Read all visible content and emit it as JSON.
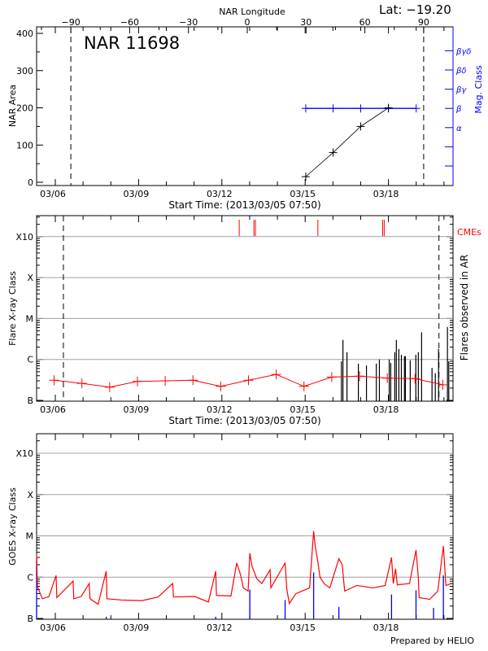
{
  "header": {
    "title": "NAR 11698",
    "lat": "Lat: −19.20"
  },
  "footer": "Prepared by HELIO",
  "colors": {
    "axis": "#000000",
    "grid": "#a0a0a0",
    "mag_class": "#0000ff",
    "flare_red": "#ff0000",
    "goes_long": "#ff0000",
    "goes_short": "#0000ff",
    "cme": "#ff0000"
  },
  "chart_data": [
    {
      "type": "line",
      "title": "NAR 11698",
      "xlabel": "Start Time: (2013/03/05 07:50)",
      "xlim": [
        "2013-03-05 07:50",
        "2013-03-20 07:50"
      ],
      "x_tick_labels": [
        "03/06",
        "03/09",
        "03/12",
        "03/15",
        "03/18"
      ],
      "x_tick_dates": [
        "2013-03-06 00:00",
        "2013-03-09 00:00",
        "2013-03-12 00:00",
        "2013-03-15 00:00",
        "2013-03-18 00:00"
      ],
      "top_axis": {
        "label": "NAR Longitude",
        "ticks": [
          -90,
          -60,
          -30,
          0,
          30,
          60,
          90
        ]
      },
      "limb_longitudes": [
        -90,
        90
      ],
      "ylabel": "NAR Area",
      "ylim": [
        0,
        400
      ],
      "yticks": [
        0,
        100,
        200,
        300,
        400
      ],
      "right_axis": {
        "label": "Mag. Class",
        "ticks": [
          "",
          "",
          "α",
          "β",
          "βγ",
          "βδ",
          "βγδ"
        ]
      },
      "series": [
        {
          "kind": "area",
          "points": [
            [
              "2013-03-15 00:30",
              15
            ],
            [
              "2013-03-16 00:10",
              80
            ],
            [
              "2013-03-17 00:00",
              150
            ],
            [
              "2013-03-18 00:00",
              200
            ]
          ]
        },
        {
          "kind": "mag_class",
          "points": [
            [
              "2013-03-15 00:30",
              "β"
            ],
            [
              "2013-03-16 00:10",
              "β"
            ],
            [
              "2013-03-17 00:00",
              "β"
            ],
            [
              "2013-03-18 00:00",
              "β"
            ],
            [
              "2013-03-19 00:00",
              "β"
            ]
          ]
        }
      ]
    },
    {
      "type": "line",
      "xlabel": "Start Time: (2013/03/05 07:50)",
      "xlim": [
        "2013-03-05 07:50",
        "2013-03-20 07:50"
      ],
      "x_tick_labels": [
        "03/06",
        "03/09",
        "03/12",
        "03/15",
        "03/18"
      ],
      "ylabel": "Flare X-ray Class",
      "y_scale": "log",
      "ylim": [
        1e-07,
        0.0003
      ],
      "y_tick_labels": [
        "B",
        "C",
        "M",
        "X",
        "X10"
      ],
      "y_tick_values": [
        1e-07,
        1e-06,
        1e-05,
        0.0001,
        0.001
      ],
      "grid": true,
      "right_label": "Flares observed in AR",
      "cme_label": "CMEs",
      "limb_crossings": [
        "2013-03-06 07:00",
        "2013-03-19 19:40"
      ],
      "red_series": [
        [
          "2013-03-05 23:00",
          3.1e-07
        ],
        [
          "2013-03-06 23:00",
          2.6e-07
        ],
        [
          "2013-03-07 23:00",
          2.1e-07
        ],
        [
          "2013-03-08 23:00",
          2.9e-07
        ],
        [
          "2013-03-09 23:00",
          3e-07
        ],
        [
          "2013-03-10 23:00",
          3.1e-07
        ],
        [
          "2013-03-11 23:00",
          2.2e-07
        ],
        [
          "2013-03-12 23:00",
          3.1e-07
        ],
        [
          "2013-03-13 23:00",
          4.3e-07
        ],
        [
          "2013-03-14 23:00",
          2.2e-07
        ],
        [
          "2013-03-15 23:00",
          3.7e-07
        ],
        [
          "2013-03-16 23:00",
          3.9e-07
        ],
        [
          "2013-03-17 23:00",
          3.5e-07
        ],
        [
          "2013-03-18 23:00",
          3.4e-07
        ],
        [
          "2013-03-19 23:00",
          2.4e-07
        ]
      ],
      "flares": [
        [
          "2013-03-16 07:20",
          "B9.0"
        ],
        [
          "2013-03-16 08:40",
          "C3.0"
        ],
        [
          "2013-03-16 12:10",
          "C1.5"
        ],
        [
          "2013-03-16 22:00",
          "B7.9"
        ],
        [
          "2013-03-17 05:00",
          "B7.1"
        ],
        [
          "2013-03-17 13:30",
          "B7.9"
        ],
        [
          "2013-03-17 16:10",
          "C1.0"
        ],
        [
          "2013-03-18 00:40",
          "C1.0"
        ],
        [
          "2013-03-18 02:00",
          "B8.2"
        ],
        [
          "2013-03-18 05:30",
          "C1.5"
        ],
        [
          "2013-03-18 06:50",
          "C3.0"
        ],
        [
          "2013-03-18 09:00",
          "C1.8"
        ],
        [
          "2013-03-18 11:10",
          "C1.3"
        ],
        [
          "2013-03-18 13:50",
          "C1.2"
        ],
        [
          "2013-03-18 14:40",
          "C1.2"
        ],
        [
          "2013-03-18 18:50",
          "B9.5"
        ],
        [
          "2013-03-18 23:40",
          "C1.3"
        ],
        [
          "2013-03-19 01:50",
          "C1.5"
        ],
        [
          "2013-03-19 04:40",
          "C4.6"
        ],
        [
          "2013-03-19 13:40",
          "B6.2"
        ],
        [
          "2013-03-19 16:30",
          "B4.6"
        ],
        [
          "2013-03-19 19:20",
          "C1.8"
        ],
        [
          "2013-03-20 03:00",
          "C6.2"
        ],
        [
          "2013-03-20 04:10",
          "B9.0"
        ]
      ],
      "cmes": [
        "2013-03-12 15:00",
        "2013-03-13 03:40",
        "2013-03-13 05:00",
        "2013-03-15 11:00",
        "2013-03-17 19:00",
        "2013-03-17 20:20"
      ]
    },
    {
      "type": "line",
      "xlim": [
        "2013-03-05 07:50",
        "2013-03-20 07:50"
      ],
      "x_tick_labels": [
        "03/06",
        "03/09",
        "03/12",
        "03/15",
        "03/18"
      ],
      "ylabel": "GOES X-ray Class",
      "y_scale": "log",
      "ylim": [
        1e-07,
        0.0003
      ],
      "y_tick_labels": [
        "B",
        "C",
        "M",
        "X",
        "X10"
      ],
      "y_tick_values": [
        1e-07,
        1e-06,
        1e-05,
        0.0001,
        0.001
      ],
      "grid": true,
      "long_channel": [
        [
          "2013-03-05 07:50",
          3.5e-06
        ],
        [
          "2013-03-05 08:30",
          6e-07
        ],
        [
          "2013-03-05 12:50",
          3e-07
        ],
        [
          "2013-03-05 18:30",
          3.4e-07
        ],
        [
          "2013-03-06 00:40",
          1.1e-06
        ],
        [
          "2013-03-06 01:20",
          3.2e-07
        ],
        [
          "2013-03-06 15:20",
          8e-07
        ],
        [
          "2013-03-06 16:00",
          3e-07
        ],
        [
          "2013-03-06 22:20",
          3.4e-07
        ],
        [
          "2013-03-07 05:20",
          7e-07
        ],
        [
          "2013-03-07 06:00",
          3e-07
        ],
        [
          "2013-03-07 13:00",
          2.2e-07
        ],
        [
          "2013-03-07 20:00",
          1.4e-06
        ],
        [
          "2013-03-07 20:40",
          3e-07
        ],
        [
          "2013-03-08 09:20",
          2.8e-07
        ],
        [
          "2013-03-09 02:50",
          2.7e-07
        ],
        [
          "2013-03-09 16:50",
          3.3e-07
        ],
        [
          "2013-03-10 05:30",
          7e-07
        ],
        [
          "2013-03-10 06:10",
          3.3e-07
        ],
        [
          "2013-03-11 00:30",
          3.4e-07
        ],
        [
          "2013-03-11 12:20",
          2.5e-07
        ],
        [
          "2013-03-11 18:40",
          1.4e-06
        ],
        [
          "2013-03-11 19:20",
          3.6e-07
        ],
        [
          "2013-03-12 07:50",
          3.5e-07
        ],
        [
          "2013-03-12 12:50",
          2.2e-06
        ],
        [
          "2013-03-12 16:20",
          1.1e-06
        ],
        [
          "2013-03-12 18:30",
          5.5e-07
        ],
        [
          "2013-03-12 22:40",
          4.6e-07
        ],
        [
          "2013-03-13 00:10",
          3.8e-06
        ],
        [
          "2013-03-13 02:10",
          1.8e-06
        ],
        [
          "2013-03-13 06:20",
          9e-07
        ],
        [
          "2013-03-13 10:30",
          7e-07
        ],
        [
          "2013-03-13 17:40",
          1.5e-06
        ],
        [
          "2013-03-13 18:20",
          5.5e-07
        ],
        [
          "2013-03-14 06:40",
          2.2e-06
        ],
        [
          "2013-03-14 08:10",
          5e-07
        ],
        [
          "2013-03-14 10:20",
          2.3e-07
        ],
        [
          "2013-03-14 16:00",
          4e-07
        ],
        [
          "2013-03-15 03:50",
          5.5e-07
        ],
        [
          "2013-03-15 07:20",
          1.3e-05
        ],
        [
          "2013-03-15 08:40",
          5.7e-06
        ],
        [
          "2013-03-15 10:50",
          2.5e-06
        ],
        [
          "2013-03-15 12:50",
          1e-06
        ],
        [
          "2013-03-15 16:20",
          7e-07
        ],
        [
          "2013-03-15 21:20",
          5.5e-07
        ],
        [
          "2013-03-16 05:10",
          2.8e-06
        ],
        [
          "2013-03-16 08:00",
          2e-06
        ],
        [
          "2013-03-16 10:10",
          4.6e-07
        ],
        [
          "2013-03-16 20:40",
          6.3e-07
        ],
        [
          "2013-03-17 10:40",
          5.5e-07
        ],
        [
          "2013-03-17 21:10",
          6.3e-07
        ],
        [
          "2013-03-18 02:40",
          3e-06
        ],
        [
          "2013-03-18 04:10",
          7e-07
        ],
        [
          "2013-03-18 06:10",
          1.6e-06
        ],
        [
          "2013-03-18 07:40",
          6.5e-07
        ],
        [
          "2013-03-18 18:10",
          7e-07
        ],
        [
          "2013-03-18 23:50",
          4.5e-06
        ],
        [
          "2013-03-19 01:50",
          1e-06
        ],
        [
          "2013-03-19 02:30",
          3.2e-07
        ],
        [
          "2013-03-19 11:40",
          2.9e-07
        ],
        [
          "2013-03-19 18:40",
          4.6e-07
        ],
        [
          "2013-03-19 23:30",
          5.7e-06
        ],
        [
          "2013-03-20 01:40",
          6.3e-07
        ],
        [
          "2013-03-20 06:30",
          7e-07
        ]
      ],
      "short_channel_peaks": [
        [
          "2013-03-05 07:50",
          2.9e-06
        ],
        [
          "2013-03-07 20:00",
          1.1e-07
        ],
        [
          "2013-03-11 18:40",
          1.1e-07
        ],
        [
          "2013-03-13 00:10",
          5e-07
        ],
        [
          "2013-03-14 06:40",
          2.8e-07
        ],
        [
          "2013-03-15 07:20",
          1.3e-06
        ],
        [
          "2013-03-16 05:10",
          1.9e-07
        ],
        [
          "2013-03-18 02:40",
          3.8e-07
        ],
        [
          "2013-03-18 23:50",
          4.8e-07
        ],
        [
          "2013-03-19 15:00",
          1.8e-07
        ],
        [
          "2013-03-19 23:30",
          1.1e-06
        ]
      ]
    }
  ]
}
